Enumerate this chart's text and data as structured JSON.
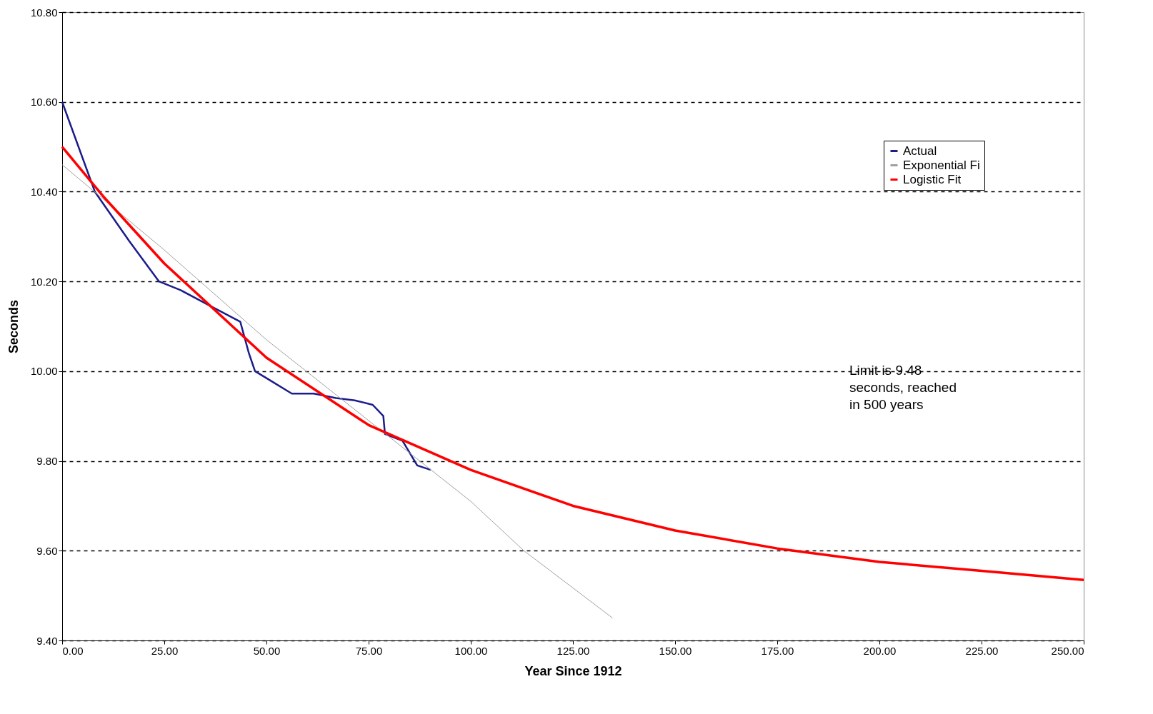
{
  "chart_data": {
    "type": "line",
    "xlabel": "Year Since 1912",
    "ylabel": "Seconds",
    "xlim": [
      0,
      250
    ],
    "ylim": [
      9.4,
      10.8
    ],
    "xticks": [
      {
        "value": 0,
        "label": "0.00"
      },
      {
        "value": 25,
        "label": "25.00"
      },
      {
        "value": 50,
        "label": "50.00"
      },
      {
        "value": 75,
        "label": "75.00"
      },
      {
        "value": 100,
        "label": "100.00"
      },
      {
        "value": 125,
        "label": "125.00"
      },
      {
        "value": 150,
        "label": "150.00"
      },
      {
        "value": 175,
        "label": "175.00"
      },
      {
        "value": 200,
        "label": "200.00"
      },
      {
        "value": 225,
        "label": "225.00"
      },
      {
        "value": 250,
        "label": "250.00"
      }
    ],
    "yticks": [
      {
        "value": 9.4,
        "label": "9.40"
      },
      {
        "value": 9.6,
        "label": "9.60"
      },
      {
        "value": 9.8,
        "label": "9.80"
      },
      {
        "value": 10,
        "label": "10.00"
      },
      {
        "value": 10.2,
        "label": "10.20"
      },
      {
        "value": 10.4,
        "label": "10.40"
      },
      {
        "value": 10.6,
        "label": "10.60"
      },
      {
        "value": 10.8,
        "label": "10.80"
      }
    ],
    "grid": "y",
    "legend": "top right",
    "marker": "none",
    "series": [
      {
        "name": "Actual",
        "color": "#1c1c8c",
        "x": [
          0,
          8,
          16.4,
          23.7,
          29.1,
          36.3,
          43.6,
          44.5,
          45.7,
          47.2,
          50.8,
          56.2,
          61.6,
          67,
          71.6,
          76,
          78.6,
          79,
          83.3,
          86.9,
          90.2
        ],
        "values": [
          10.6,
          10.4,
          10.29,
          10.2,
          10.18,
          10.145,
          10.11,
          10.08,
          10.04,
          10.0,
          9.98,
          9.95,
          9.95,
          9.94,
          9.935,
          9.925,
          9.9,
          9.86,
          9.845,
          9.79,
          9.78
        ]
      },
      {
        "name": "Exponential Fi",
        "color": "#a0a0a0",
        "x": [
          0,
          25,
          50,
          100,
          113,
          134.7
        ],
        "values": [
          10.46,
          10.27,
          10.07,
          9.71,
          9.6,
          9.45
        ]
      },
      {
        "name": "Logistic Fit",
        "color": "#ff0000",
        "x": [
          0,
          10,
          25,
          50,
          75,
          100,
          125,
          150,
          175,
          200,
          225,
          250
        ],
        "values": [
          10.5,
          10.39,
          10.24,
          10.03,
          9.88,
          9.78,
          9.7,
          9.645,
          9.605,
          9.575,
          9.555,
          9.535
        ]
      }
    ],
    "annotations": [
      "Limit is 9.48\nseconds, reached\nin 500 years"
    ]
  }
}
